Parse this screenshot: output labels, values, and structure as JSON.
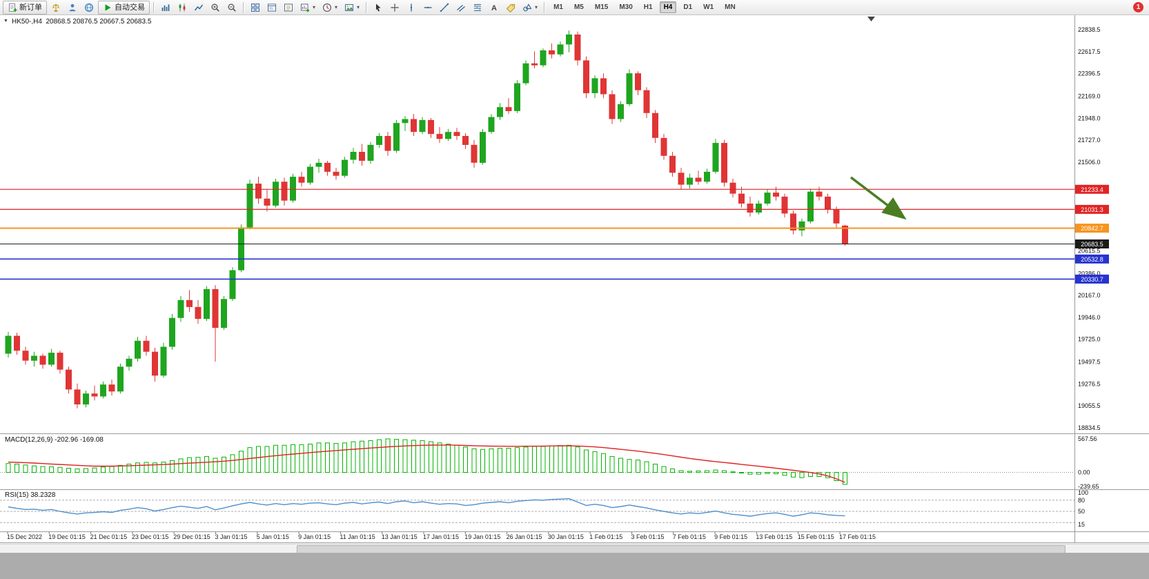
{
  "toolbar": {
    "new_order": {
      "label": "新订单"
    },
    "autotrade": {
      "label": "自动交易"
    },
    "left_icon_buttons": [
      {
        "name": "market-watch",
        "icon": "scale"
      },
      {
        "name": "profile",
        "icon": "profile"
      },
      {
        "name": "community",
        "icon": "globe"
      }
    ],
    "chart_icon_buttons": [
      {
        "name": "bar-chart-mode",
        "icon": "bar-chart"
      },
      {
        "name": "candlestick-mode",
        "icon": "candles"
      },
      {
        "name": "line-chart-mode",
        "icon": "line-chart"
      },
      {
        "name": "zoom-in",
        "icon": "zoom-in"
      },
      {
        "name": "zoom-out",
        "icon": "zoom-out"
      }
    ],
    "window_icon_buttons": [
      {
        "name": "tile-windows",
        "icon": "tile"
      },
      {
        "name": "data-window",
        "icon": "window"
      },
      {
        "name": "navigator",
        "icon": "nav"
      },
      {
        "name": "new-chart",
        "icon": "chart-plus",
        "caret": true
      },
      {
        "name": "periods",
        "icon": "clock",
        "caret": true
      },
      {
        "name": "templates",
        "icon": "image",
        "caret": true
      }
    ],
    "drawing_icon_buttons": [
      {
        "name": "cursor",
        "icon": "cursor"
      },
      {
        "name": "crosshair",
        "icon": "crosshair"
      },
      {
        "name": "vertical-line",
        "icon": "vline"
      },
      {
        "name": "horizontal-line",
        "icon": "hline"
      },
      {
        "name": "trendline",
        "icon": "tline"
      },
      {
        "name": "equidistant-channel",
        "icon": "channel"
      },
      {
        "name": "fibonacci-retracement",
        "icon": "fibo"
      },
      {
        "name": "text",
        "icon": "textA"
      },
      {
        "name": "text-label",
        "icon": "label"
      },
      {
        "name": "arrow-objects",
        "icon": "shapes",
        "caret": true
      }
    ],
    "timeframes": [
      "M1",
      "M5",
      "M15",
      "M30",
      "H1",
      "H4",
      "D1",
      "W1",
      "MN"
    ],
    "active_timeframe": "H4",
    "notification_count": "1"
  },
  "chart": {
    "collapse_arrow": "▼",
    "title": "HK50-,H4  20868.5 20876.5 20667.5 20683.5"
  },
  "colors": {
    "candle_up": "#1FA51F",
    "candle_down": "#E03535",
    "macd_histogram": "#00B400",
    "macd_signal": "#E02020",
    "rsi_line": "#4D8FCC",
    "arrow": "#4C7D22",
    "line_red": "#E02525",
    "line_orange": "#F7941D",
    "line_blue": "#2633D0",
    "line_current": "#1A1A1A",
    "badge_text": "#FFFFFF"
  },
  "chart_data": {
    "type": "candlestick",
    "symbol": "HK50-",
    "timeframe": "H4",
    "last_ohlc": {
      "open": 20868.5,
      "high": 20876.5,
      "low": 20667.5,
      "close": 20683.5
    },
    "axis": {
      "top": 22838.5,
      "bottom": 18834.5
    },
    "price_labels": [
      "22838.5",
      "22617.5",
      "22396.5",
      "22169.0",
      "21948.0",
      "21727.0",
      "21506.0",
      "20615.5",
      "20386.0",
      "20167.0",
      "19946.0",
      "19725.0",
      "19497.5",
      "19276.5",
      "19055.5",
      "18834.5"
    ],
    "hlines": [
      {
        "price": 21233.4,
        "label": "21233.4",
        "color": "#E02525",
        "width": 1.2
      },
      {
        "price": 21031.3,
        "label": "21031.3",
        "color": "#E02525",
        "width": 1.2
      },
      {
        "price": 20842.7,
        "label": "20842.7",
        "color": "#F7941D",
        "width": 2
      },
      {
        "price": 20683.5,
        "label": "20683.5",
        "color": "#1A1A1A",
        "width": 1,
        "current": true
      },
      {
        "price": 20532.8,
        "label": "20532.8",
        "color": "#2633D0",
        "width": 1.6
      },
      {
        "price": 20330.7,
        "label": "20330.7",
        "color": "#2633D0",
        "width": 1.6
      }
    ],
    "candles": [
      [
        19580,
        19800,
        19540,
        19760
      ],
      [
        19760,
        19790,
        19570,
        19610
      ],
      [
        19610,
        19650,
        19470,
        19510
      ],
      [
        19510,
        19600,
        19450,
        19560
      ],
      [
        19560,
        19580,
        19430,
        19470
      ],
      [
        19470,
        19630,
        19450,
        19590
      ],
      [
        19590,
        19610,
        19380,
        19420
      ],
      [
        19420,
        19450,
        19180,
        19220
      ],
      [
        19220,
        19280,
        19030,
        19070
      ],
      [
        19070,
        19210,
        19040,
        19180
      ],
      [
        19180,
        19260,
        19110,
        19150
      ],
      [
        19150,
        19300,
        19130,
        19270
      ],
      [
        19270,
        19320,
        19160,
        19200
      ],
      [
        19200,
        19480,
        19180,
        19450
      ],
      [
        19450,
        19560,
        19410,
        19530
      ],
      [
        19530,
        19750,
        19500,
        19710
      ],
      [
        19710,
        19760,
        19560,
        19600
      ],
      [
        19600,
        19640,
        19300,
        19360
      ],
      [
        19360,
        19690,
        19340,
        19650
      ],
      [
        19650,
        19980,
        19620,
        19940
      ],
      [
        19940,
        20160,
        19900,
        20120
      ],
      [
        20120,
        20220,
        20000,
        20050
      ],
      [
        20050,
        20120,
        19880,
        19930
      ],
      [
        19930,
        20260,
        19910,
        20230
      ],
      [
        20230,
        20270,
        19500,
        19840
      ],
      [
        19840,
        20160,
        19820,
        20130
      ],
      [
        20130,
        20450,
        20110,
        20420
      ],
      [
        20420,
        20880,
        20400,
        20850
      ],
      [
        20850,
        21330,
        20830,
        21290
      ],
      [
        21290,
        21360,
        21090,
        21140
      ],
      [
        21140,
        21230,
        21010,
        21070
      ],
      [
        21070,
        21340,
        21050,
        21310
      ],
      [
        21310,
        21350,
        21070,
        21120
      ],
      [
        21120,
        21390,
        21100,
        21360
      ],
      [
        21360,
        21410,
        21260,
        21300
      ],
      [
        21300,
        21490,
        21280,
        21460
      ],
      [
        21460,
        21540,
        21400,
        21500
      ],
      [
        21500,
        21520,
        21370,
        21410
      ],
      [
        21410,
        21450,
        21330,
        21370
      ],
      [
        21370,
        21560,
        21350,
        21530
      ],
      [
        21530,
        21650,
        21490,
        21610
      ],
      [
        21610,
        21690,
        21470,
        21520
      ],
      [
        21520,
        21710,
        21490,
        21680
      ],
      [
        21680,
        21800,
        21650,
        21770
      ],
      [
        21770,
        21810,
        21570,
        21620
      ],
      [
        21620,
        21930,
        21600,
        21900
      ],
      [
        21900,
        21970,
        21820,
        21940
      ],
      [
        21940,
        21990,
        21770,
        21810
      ],
      [
        21810,
        21960,
        21790,
        21930
      ],
      [
        21930,
        21950,
        21750,
        21790
      ],
      [
        21790,
        21860,
        21700,
        21740
      ],
      [
        21740,
        21840,
        21720,
        21810
      ],
      [
        21810,
        21850,
        21730,
        21770
      ],
      [
        21770,
        21800,
        21640,
        21680
      ],
      [
        21680,
        21730,
        21450,
        21500
      ],
      [
        21500,
        21840,
        21480,
        21810
      ],
      [
        21810,
        21990,
        21790,
        21960
      ],
      [
        21960,
        22100,
        21930,
        22060
      ],
      [
        22060,
        22150,
        21990,
        22020
      ],
      [
        22020,
        22330,
        22000,
        22300
      ],
      [
        22300,
        22530,
        22280,
        22500
      ],
      [
        22500,
        22620,
        22450,
        22480
      ],
      [
        22480,
        22650,
        22460,
        22630
      ],
      [
        22630,
        22700,
        22550,
        22590
      ],
      [
        22590,
        22720,
        22570,
        22690
      ],
      [
        22690,
        22830,
        22610,
        22790
      ],
      [
        22790,
        22820,
        22480,
        22530
      ],
      [
        22530,
        22570,
        22150,
        22200
      ],
      [
        22200,
        22380,
        22150,
        22350
      ],
      [
        22350,
        22400,
        22150,
        22190
      ],
      [
        22190,
        22230,
        21890,
        21940
      ],
      [
        21940,
        22120,
        21910,
        22090
      ],
      [
        22090,
        22440,
        22070,
        22400
      ],
      [
        22400,
        22420,
        22180,
        22230
      ],
      [
        22230,
        22260,
        21950,
        22000
      ],
      [
        22000,
        22030,
        21700,
        21750
      ],
      [
        21750,
        21790,
        21530,
        21570
      ],
      [
        21570,
        21610,
        21360,
        21400
      ],
      [
        21400,
        21450,
        21230,
        21280
      ],
      [
        21280,
        21390,
        21240,
        21350
      ],
      [
        21350,
        21420,
        21280,
        21310
      ],
      [
        21310,
        21440,
        21290,
        21410
      ],
      [
        21410,
        21740,
        21390,
        21700
      ],
      [
        21700,
        21730,
        21260,
        21300
      ],
      [
        21300,
        21340,
        21150,
        21190
      ],
      [
        21190,
        21260,
        21050,
        21090
      ],
      [
        21090,
        21160,
        20960,
        21000
      ],
      [
        21000,
        21120,
        20980,
        21090
      ],
      [
        21090,
        21230,
        21070,
        21200
      ],
      [
        21200,
        21260,
        21120,
        21160
      ],
      [
        21160,
        21190,
        20950,
        20990
      ],
      [
        20990,
        21020,
        20780,
        20820
      ],
      [
        20820,
        20940,
        20760,
        20910
      ],
      [
        20910,
        21240,
        20890,
        21210
      ],
      [
        21210,
        21260,
        21120,
        21160
      ],
      [
        21160,
        21190,
        20990,
        21030
      ],
      [
        21030,
        21060,
        20850,
        20890
      ],
      [
        20868.5,
        20876.5,
        20667.5,
        20683.5
      ]
    ],
    "time_labels": [
      "15 Dec 2022",
      "19 Dec 01:15",
      "21 Dec 01:15",
      "23 Dec 01:15",
      "29 Dec 01:15",
      "3 Jan 01:15",
      "5 Jan 01:15",
      "9 Jan 01:15",
      "11 Jan 01:15",
      "13 Jan 01:15",
      "17 Jan 01:15",
      "19 Jan 01:15",
      "26 Jan 01:15",
      "30 Jan 01:15",
      "1 Feb 01:15",
      "3 Feb 01:15",
      "7 Feb 01:15",
      "9 Feb 01:15",
      "13 Feb 01:15",
      "15 Feb 01:15",
      "17 Feb 01:15"
    ],
    "macd": {
      "label": "MACD(12,26,9) -202.96 -169.08",
      "main_value": -202.96,
      "signal_value": -169.08,
      "scale_max": 567.56,
      "scale_min": -239.65,
      "scale_labels": [
        "567.56",
        "0.00",
        "-239.65"
      ],
      "histogram": [
        150,
        140,
        125,
        110,
        100,
        95,
        85,
        70,
        60,
        65,
        75,
        90,
        100,
        120,
        140,
        160,
        170,
        160,
        175,
        200,
        230,
        250,
        255,
        270,
        240,
        260,
        300,
        360,
        420,
        440,
        440,
        460,
        460,
        470,
        470,
        480,
        500,
        500,
        490,
        500,
        520,
        530,
        540,
        555,
        567,
        560,
        555,
        545,
        540,
        520,
        500,
        480,
        460,
        430,
        400,
        390,
        400,
        410,
        410,
        420,
        430,
        440,
        440,
        450,
        455,
        460,
        430,
        380,
        350,
        320,
        270,
        240,
        220,
        210,
        180,
        140,
        100,
        60,
        30,
        20,
        25,
        30,
        40,
        30,
        10,
        -10,
        -30,
        -30,
        -20,
        -25,
        -50,
        -80,
        -90,
        -70,
        -70,
        -90,
        -140,
        -203
      ],
      "signal": [
        175,
        170,
        165,
        158,
        150,
        142,
        135,
        127,
        120,
        113,
        106,
        105,
        106,
        109,
        113,
        118,
        123,
        128,
        134,
        141,
        149,
        157,
        165,
        172,
        180,
        190,
        203,
        219,
        236,
        252,
        268,
        283,
        297,
        310,
        323,
        336,
        348,
        359,
        370,
        381,
        392,
        402,
        413,
        423,
        433,
        441,
        448,
        454,
        459,
        462,
        463,
        463,
        461,
        457,
        452,
        448,
        445,
        443,
        442,
        442,
        443,
        444,
        446,
        448,
        450,
        450,
        447,
        441,
        432,
        420,
        406,
        391,
        376,
        360,
        342,
        323,
        302,
        280,
        258,
        237,
        217,
        199,
        183,
        168,
        152,
        136,
        120,
        104,
        88,
        71,
        53,
        35,
        17,
        -2,
        -25,
        -60,
        -110,
        -169
      ]
    },
    "rsi": {
      "label": "RSI(15) 38.2328",
      "value": 38.2328,
      "levels": [
        80,
        50,
        20
      ],
      "scale_labels": [
        "100",
        "80",
        "50",
        "15"
      ],
      "values": [
        62,
        58,
        55,
        56,
        53,
        55,
        50,
        46,
        43,
        46,
        47,
        49,
        47,
        53,
        56,
        60,
        57,
        51,
        55,
        60,
        64,
        61,
        58,
        63,
        54,
        59,
        65,
        70,
        74,
        70,
        67,
        71,
        68,
        71,
        69,
        72,
        73,
        70,
        68,
        72,
        74,
        70,
        73,
        75,
        71,
        76,
        78,
        73,
        76,
        72,
        69,
        71,
        70,
        66,
        68,
        72,
        74,
        76,
        73,
        77,
        79,
        81,
        80,
        82,
        83,
        84,
        75,
        66,
        69,
        66,
        60,
        63,
        67,
        63,
        59,
        54,
        50,
        46,
        43,
        46,
        44,
        47,
        51,
        46,
        42,
        40,
        37,
        41,
        44,
        46,
        42,
        37,
        41,
        46,
        44,
        41,
        39,
        38.23
      ]
    }
  }
}
